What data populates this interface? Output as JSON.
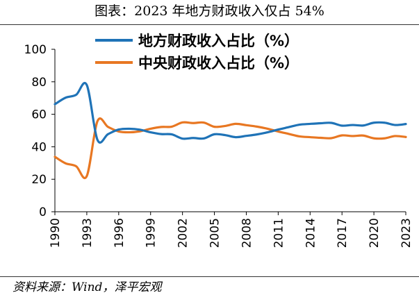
{
  "title": "图表：2023 年地方财政收入仅占 54%",
  "source": "资料来源：Wind，泽平宏观",
  "colors": {
    "local": "#1f73b7",
    "central": "#e87722",
    "axis": "#000000"
  },
  "chart_data": {
    "type": "line",
    "title": "图表：2023 年地方财政收入仅占 54%",
    "xlabel": "",
    "ylabel": "",
    "xlim": [
      1990,
      2023
    ],
    "ylim": [
      0,
      100
    ],
    "yticks": [
      0,
      20,
      40,
      60,
      80,
      100
    ],
    "xticks": [
      1990,
      1993,
      1996,
      1999,
      2002,
      2005,
      2008,
      2011,
      2014,
      2017,
      2020,
      2023
    ],
    "legend_position": "top-center",
    "x": [
      1990,
      1991,
      1992,
      1993,
      1994,
      1995,
      1996,
      1997,
      1998,
      1999,
      2000,
      2001,
      2002,
      2003,
      2004,
      2005,
      2006,
      2007,
      2008,
      2009,
      2010,
      2011,
      2012,
      2013,
      2014,
      2015,
      2016,
      2017,
      2018,
      2019,
      2020,
      2021,
      2022,
      2023
    ],
    "series": [
      {
        "name": "地方财政收入占比（%）",
        "color": "#1f73b7",
        "values": [
          66.2,
          70.2,
          72.0,
          78.0,
          44.3,
          47.8,
          50.6,
          51.1,
          50.5,
          48.9,
          47.8,
          47.6,
          45.0,
          45.4,
          45.1,
          47.7,
          47.2,
          45.9,
          46.7,
          47.6,
          48.9,
          50.6,
          52.1,
          53.6,
          54.1,
          54.5,
          54.7,
          53.0,
          53.4,
          53.1,
          54.8,
          54.8,
          53.4,
          54.0
        ]
      },
      {
        "name": "中央财政收入占比（%）",
        "color": "#e87722",
        "values": [
          33.8,
          29.8,
          28.0,
          22.0,
          55.7,
          52.2,
          49.4,
          48.9,
          49.5,
          51.1,
          52.2,
          52.4,
          55.0,
          54.6,
          54.9,
          52.3,
          52.8,
          54.1,
          53.3,
          52.4,
          51.1,
          49.4,
          47.9,
          46.4,
          45.9,
          45.5,
          45.3,
          47.0,
          46.6,
          46.9,
          45.2,
          45.2,
          46.6,
          46.0
        ]
      }
    ]
  }
}
